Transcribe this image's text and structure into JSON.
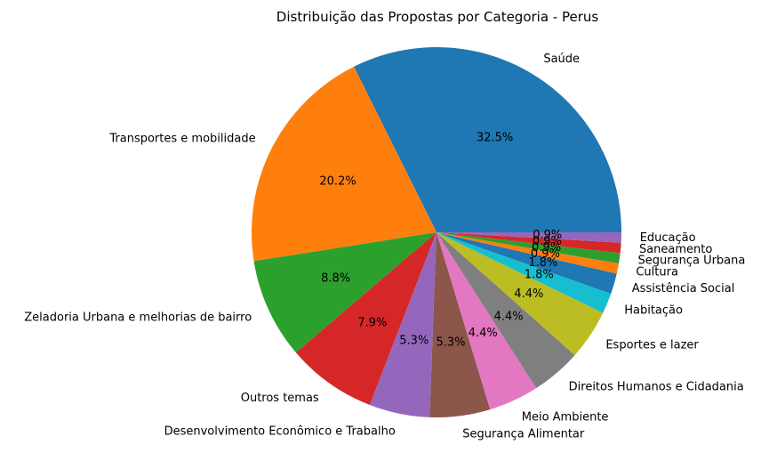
{
  "chart_data": {
    "type": "pie",
    "title": "Distribuição das Propostas por Categoria - Perus",
    "slices": [
      {
        "label": "Saúde",
        "value": 32.5,
        "pct_label": "32.5%",
        "color": "#1f77b4"
      },
      {
        "label": "Transportes e mobilidade",
        "value": 20.2,
        "pct_label": "20.2%",
        "color": "#ff7f0e"
      },
      {
        "label": "Zeladoria Urbana e melhorias de bairro",
        "value": 8.8,
        "pct_label": "8.8%",
        "color": "#2ca02c"
      },
      {
        "label": "Outros temas",
        "value": 7.9,
        "pct_label": "7.9%",
        "color": "#d62728"
      },
      {
        "label": "Desenvolvimento Econômico e Trabalho",
        "value": 5.3,
        "pct_label": "5.3%",
        "color": "#9467bd"
      },
      {
        "label": "Segurança Alimentar",
        "value": 5.3,
        "pct_label": "5.3%",
        "color": "#8c564b"
      },
      {
        "label": "Meio Ambiente",
        "value": 4.4,
        "pct_label": "4.4%",
        "color": "#e377c2"
      },
      {
        "label": "Direitos Humanos e Cidadania",
        "value": 4.4,
        "pct_label": "4.4%",
        "color": "#7f7f7f"
      },
      {
        "label": "Esportes e lazer",
        "value": 4.4,
        "pct_label": "4.4%",
        "color": "#bcbd22"
      },
      {
        "label": "Habitação",
        "value": 1.8,
        "pct_label": "1.8%",
        "color": "#17becf"
      },
      {
        "label": "Assistência Social",
        "value": 1.8,
        "pct_label": "1.8%",
        "color": "#1f77b4"
      },
      {
        "label": "Cultura",
        "value": 0.9,
        "pct_label": "0.9%",
        "color": "#ff7f0e"
      },
      {
        "label": "Segurança Urbana",
        "value": 0.9,
        "pct_label": "0.9%",
        "color": "#2ca02c"
      },
      {
        "label": "Saneamento",
        "value": 0.9,
        "pct_label": "0.9%",
        "color": "#d62728"
      },
      {
        "label": "Educação",
        "value": 0.9,
        "pct_label": "0.9%",
        "color": "#9467bd"
      }
    ],
    "start_angle_deg": 0,
    "direction": "counterclockwise"
  }
}
